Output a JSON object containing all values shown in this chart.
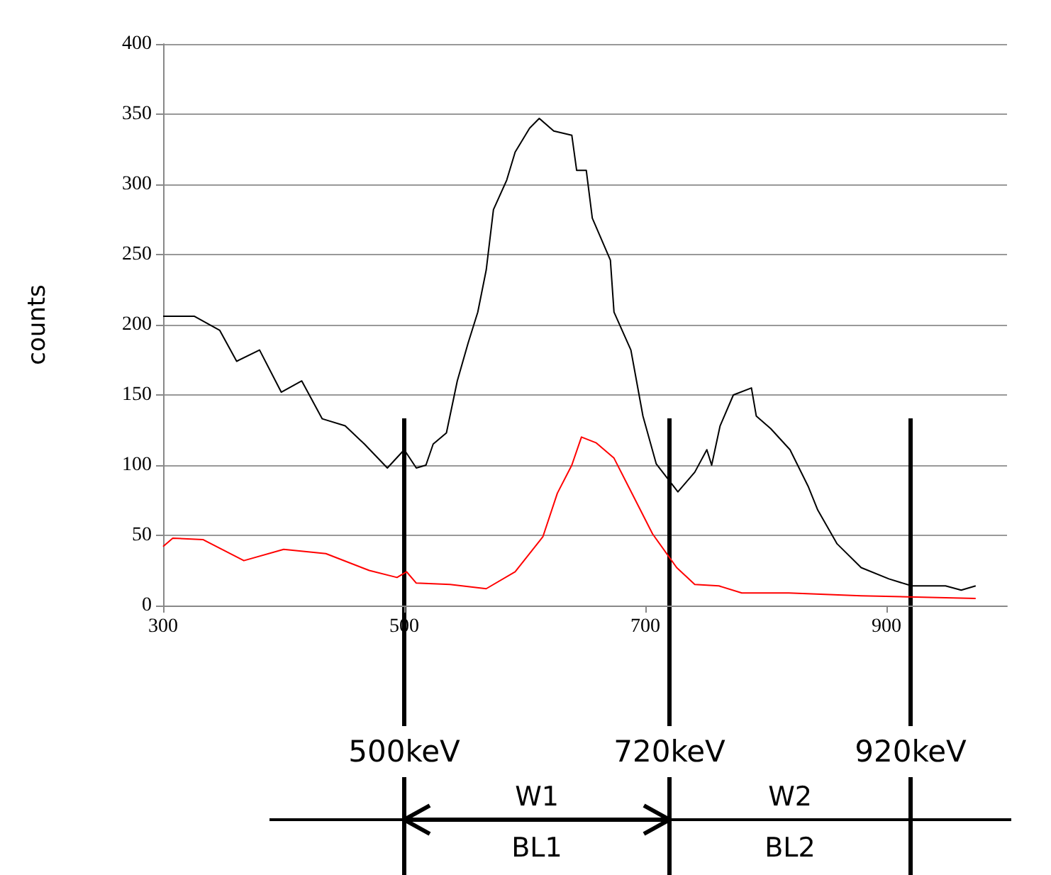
{
  "chart_data": {
    "type": "line",
    "ylabel": "counts",
    "xlim": [
      300,
      1000
    ],
    "xticks": [
      300,
      500,
      700,
      900
    ],
    "ylim": [
      0,
      400
    ],
    "yticks": [
      0,
      50,
      100,
      150,
      200,
      250,
      300,
      350,
      400
    ],
    "grid": "y",
    "marker": "none",
    "line_style": "solid",
    "series": [
      {
        "color": "#000000",
        "x": [
          300,
          326,
          347,
          361,
          380,
          398,
          415,
          432,
          451,
          467,
          486,
          500,
          510,
          518,
          524,
          535,
          544,
          553,
          561,
          568,
          574,
          585,
          592,
          604,
          612,
          624,
          639,
          643,
          651,
          656,
          671,
          674,
          688,
          698,
          709,
          727,
          741,
          751,
          755,
          762,
          773,
          788,
          792,
          804,
          820,
          835,
          843,
          859,
          879,
          902,
          921,
          949,
          962,
          974
        ],
        "values": [
          206,
          206,
          196,
          174,
          182,
          152,
          160,
          133,
          128,
          115,
          98,
          111,
          98,
          100,
          115,
          123,
          160,
          187,
          209,
          239,
          282,
          303,
          323,
          340,
          347,
          338,
          335,
          310,
          310,
          276,
          246,
          209,
          182,
          135,
          101,
          81,
          95,
          111,
          100,
          128,
          150,
          155,
          135,
          126,
          111,
          85,
          68,
          44,
          27,
          19,
          14,
          14,
          11,
          14
        ]
      },
      {
        "color": "#ff0000",
        "x": [
          300,
          308,
          333,
          367,
          400,
          435,
          471,
          494,
          502,
          510,
          538,
          568,
          592,
          615,
          627,
          639,
          647,
          659,
          674,
          690,
          706,
          726,
          741,
          761,
          780,
          819,
          879,
          974
        ],
        "values": [
          42,
          48,
          47,
          32,
          40,
          37,
          25,
          20,
          24,
          16,
          15,
          12,
          24,
          49,
          80,
          100,
          120,
          116,
          105,
          78,
          51,
          27,
          15,
          14,
          9,
          9,
          7,
          5
        ]
      }
    ],
    "ref_lines": [
      {
        "axis": "x",
        "value": 500,
        "label": "500keV",
        "color": "#000000"
      },
      {
        "axis": "x",
        "value": 720,
        "label": "720keV",
        "color": "#000000"
      },
      {
        "axis": "x",
        "value": 920,
        "label": "920keV",
        "color": "#000000"
      }
    ],
    "annotations": [
      "W1",
      "BL1",
      "W2",
      "BL2"
    ]
  }
}
